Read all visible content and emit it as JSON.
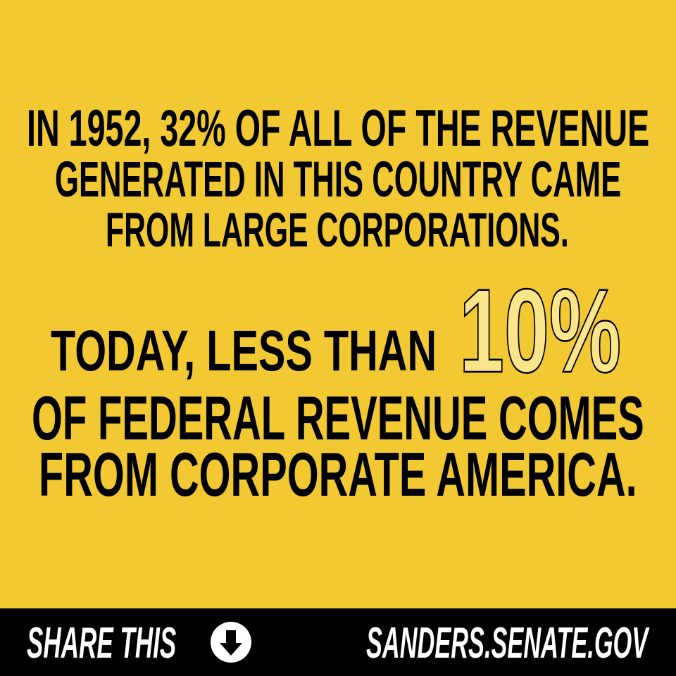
{
  "background_color": "#F2C932",
  "headline": {
    "lines": [
      "IN 1952, 32% OF ALL OF THE REVENUE",
      "GENERATED IN THIS COUNTRY CAME",
      "FROM LARGE CORPORATIONS."
    ]
  },
  "statement": {
    "lead": "TODAY, LESS THAN",
    "highlight": "10%",
    "lines": [
      "OF FEDERAL REVENUE COMES",
      "FROM CORPORATE AMERICA."
    ]
  },
  "footer": {
    "share_label": "SHARE THIS",
    "share_icon": "arrow-down-circle-icon",
    "website": "SANDERS.SENATE.GOV",
    "bar_color": "#000000"
  }
}
